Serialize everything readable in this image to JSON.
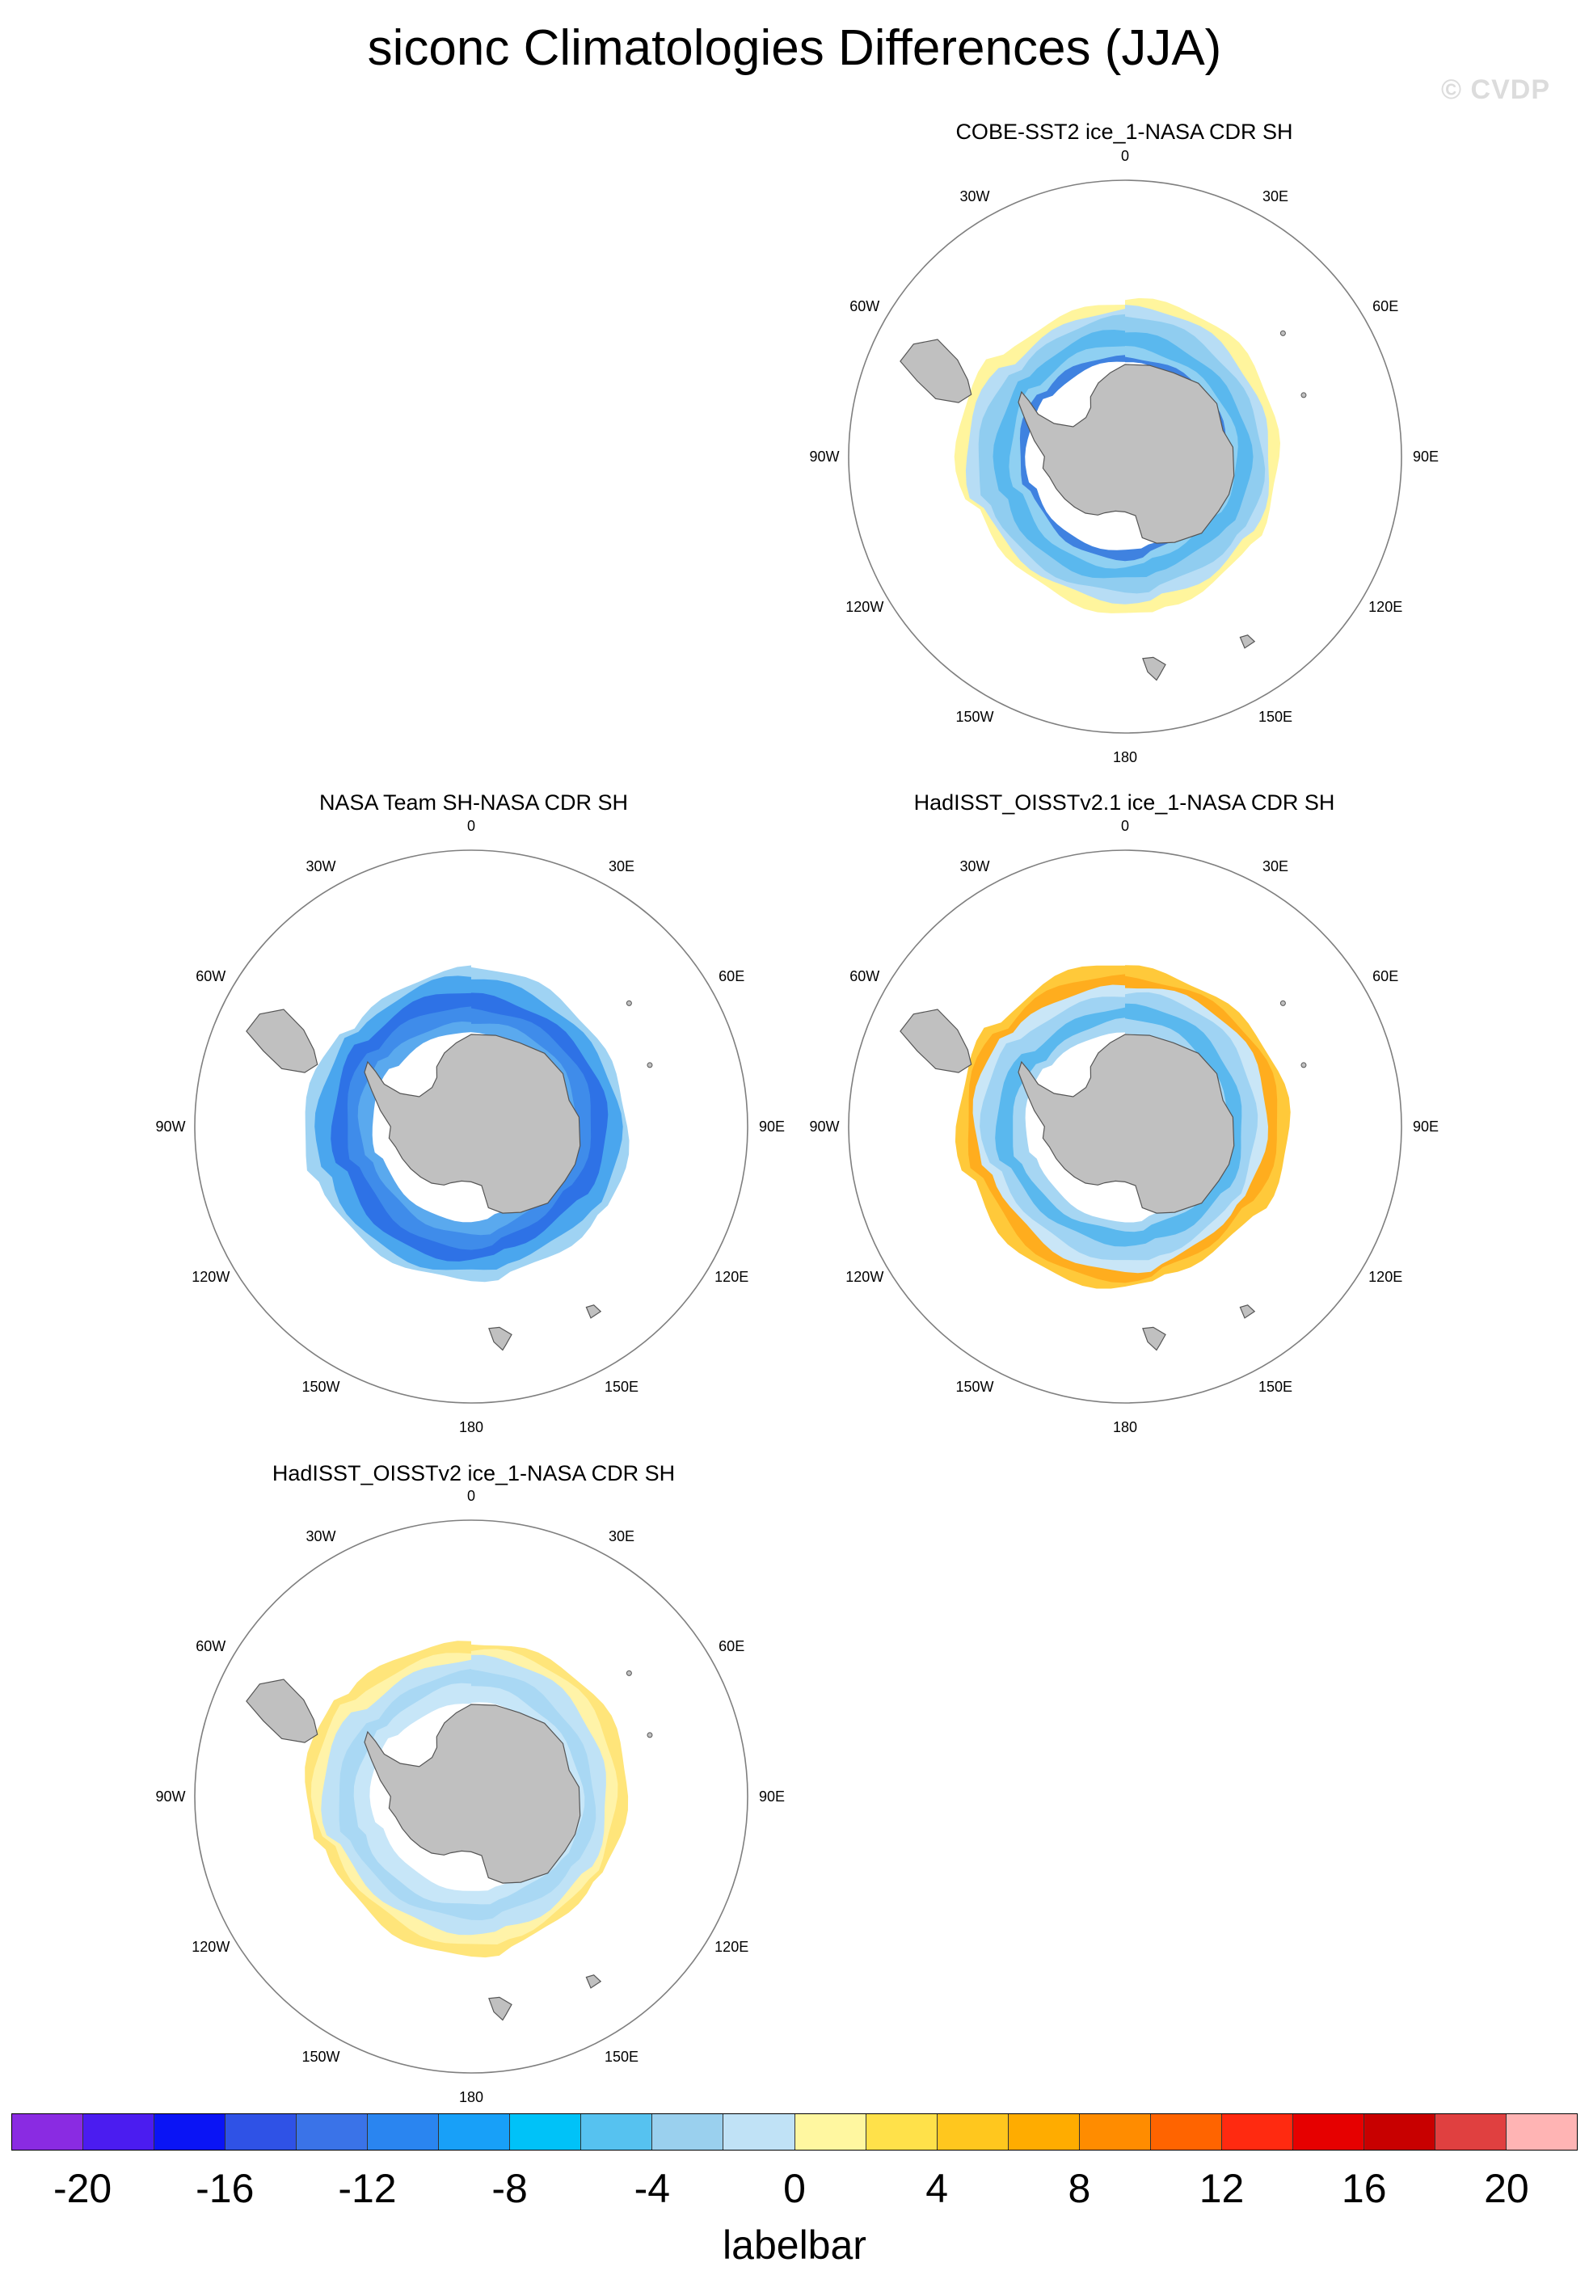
{
  "title": "siconc Climatologies Differences (JJA)",
  "watermark": "© CVDP",
  "panels": [
    {
      "id": "cobe",
      "title": "COBE-SST2 ice_1-NASA CDR SH",
      "lon_labels": [
        "0",
        "30E",
        "60E",
        "90E",
        "120E",
        "150E",
        "180",
        "150W",
        "120W",
        "90W",
        "60W",
        "30W"
      ],
      "field": [
        {
          "lat": -56,
          "color": "#fff59d"
        },
        {
          "lat": -58,
          "color": "#b7ddf5"
        },
        {
          "lat": -60,
          "color": "#90cdf0"
        },
        {
          "lat": -63,
          "color": "#5ab8ee"
        },
        {
          "lat": -66,
          "color": "#8fd0f2"
        },
        {
          "lat": -68,
          "color": "#3f82e0"
        }
      ]
    },
    {
      "id": "nasateam",
      "title": "NASA Team SH-NASA CDR SH",
      "lon_labels": [
        "0",
        "30E",
        "60E",
        "90E",
        "120E",
        "150E",
        "180",
        "150W",
        "120W",
        "90W",
        "60W",
        "30W"
      ],
      "field": [
        {
          "lat": -56,
          "color": "#9fd3f3"
        },
        {
          "lat": -58,
          "color": "#4aa6ee"
        },
        {
          "lat": -61,
          "color": "#2e72e6"
        },
        {
          "lat": -64,
          "color": "#3f8cea"
        },
        {
          "lat": -67,
          "color": "#5aa9ee"
        }
      ]
    },
    {
      "id": "hadisst21",
      "title": "HadISST_OISSTv2.1 ice_1-NASA CDR SH",
      "lon_labels": [
        "0",
        "30E",
        "60E",
        "90E",
        "120E",
        "150E",
        "180",
        "150W",
        "120W",
        "90W",
        "60W",
        "30W"
      ],
      "field": [
        {
          "lat": -55,
          "color": "#ffc93a"
        },
        {
          "lat": -57,
          "color": "#ffad1e"
        },
        {
          "lat": -59,
          "color": "#c9e6f7"
        },
        {
          "lat": -61,
          "color": "#9fd3f3"
        },
        {
          "lat": -64,
          "color": "#5ab8ee"
        },
        {
          "lat": -67,
          "color": "#a6d6f3"
        }
      ]
    },
    {
      "id": "hadisst2",
      "title": "HadISST_OISSTv2 ice_1-NASA CDR SH",
      "lon_labels": [
        "0",
        "30E",
        "60E",
        "90E",
        "120E",
        "150E",
        "180",
        "150W",
        "120W",
        "90W",
        "60W",
        "30W"
      ],
      "field": [
        {
          "lat": -56,
          "color": "#ffe57a"
        },
        {
          "lat": -58,
          "color": "#fff3a8"
        },
        {
          "lat": -60,
          "color": "#bfe2f6"
        },
        {
          "lat": -63,
          "color": "#a9d8f4"
        },
        {
          "lat": -66,
          "color": "#c7e6f8"
        }
      ]
    }
  ],
  "colorbar": {
    "colors": [
      "#8a2be2",
      "#4b1cf0",
      "#0a14f5",
      "#2f52e6",
      "#3a73e8",
      "#2a85f0",
      "#18a0f8",
      "#00c2f8",
      "#56c2f0",
      "#9ad0ee",
      "#c0e2f6",
      "#fff7a0",
      "#ffe14a",
      "#ffc71e",
      "#ffac00",
      "#ff8c00",
      "#ff6400",
      "#ff2a10",
      "#e60000",
      "#c80000",
      "#e04040",
      "#ffb4b4"
    ],
    "ticks": [
      "-20",
      "-16",
      "-12",
      "-8",
      "-4",
      "0",
      "4",
      "8",
      "12",
      "16",
      "20"
    ],
    "label": "labelbar"
  },
  "style": {
    "land_color": "#c0c0c0",
    "land_edge": "#555555",
    "gap_color": "#ffffff",
    "boundary_color": "#7f7f7f"
  }
}
